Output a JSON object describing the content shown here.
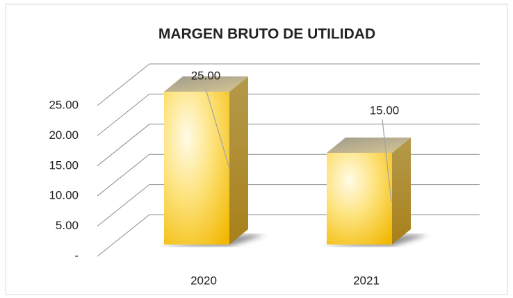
{
  "chart_data": {
    "type": "bar3d",
    "title": "MARGEN BRUTO DE UTILIDAD",
    "categories": [
      "2020",
      "2021"
    ],
    "values": [
      25,
      15
    ],
    "value_labels": [
      "25.00",
      "15.00"
    ],
    "color": "#f5c518",
    "ylim": [
      0,
      25
    ],
    "yticks": [
      {
        "value": 0,
        "label": "-"
      },
      {
        "value": 5,
        "label": "5.00"
      },
      {
        "value": 10,
        "label": "10.00"
      },
      {
        "value": 15,
        "label": "15.00"
      },
      {
        "value": 20,
        "label": "20.00"
      },
      {
        "value": 25,
        "label": "25.00"
      }
    ],
    "grid": true
  }
}
